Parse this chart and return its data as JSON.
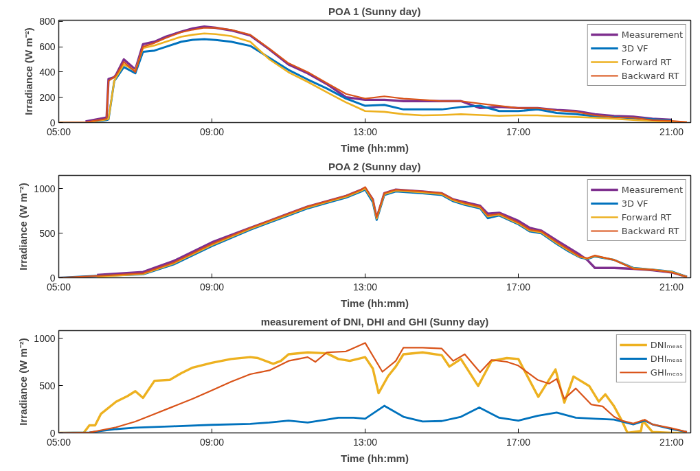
{
  "chart_data": [
    {
      "type": "line",
      "title": "POA 1 (Sunny day)",
      "xlabel": "Time (hh:mm)",
      "ylabel": "Irradiance (W m⁻²)",
      "x": [
        5,
        5.7,
        6.25,
        6.3,
        6.45,
        6.5,
        6.7,
        7.0,
        7.2,
        7.5,
        7.8,
        8.2,
        8.5,
        8.8,
        9.1,
        9.5,
        10,
        10.5,
        11,
        11.5,
        12,
        12.5,
        13,
        13.5,
        14,
        14.5,
        15,
        15.5,
        16,
        16.5,
        17,
        17.5,
        18,
        18.5,
        19,
        19.5,
        20,
        20.5,
        21,
        21.4
      ],
      "series": [
        {
          "name": "Measurement",
          "color": "#7e2f8e",
          "values": [
            null,
            8,
            40,
            345,
            360,
            380,
            500,
            420,
            620,
            640,
            680,
            720,
            745,
            760,
            750,
            730,
            690,
            580,
            460,
            390,
            305,
            200,
            180,
            180,
            170,
            170,
            170,
            170,
            115,
            125,
            115,
            115,
            100,
            92,
            66,
            52,
            46,
            30,
            22,
            null
          ]
        },
        {
          "name": "3D VF",
          "color": "#0072bd",
          "values": [
            0,
            0,
            20,
            25,
            330,
            350,
            440,
            390,
            560,
            570,
            600,
            640,
            655,
            660,
            654,
            640,
            607,
            512,
            417,
            341,
            270,
            190,
            133,
            140,
            104,
            104,
            104,
            123,
            133,
            91,
            91,
            104,
            76,
            66,
            50,
            44,
            36,
            26,
            16,
            null
          ]
        },
        {
          "name": "Forward RT",
          "color": "#edb120",
          "values": [
            0,
            0,
            25,
            30,
            330,
            360,
            460,
            410,
            590,
            610,
            640,
            680,
            695,
            705,
            700,
            685,
            640,
            500,
            398,
            322,
            240,
            160,
            91,
            85,
            66,
            57,
            60,
            66,
            60,
            53,
            57,
            57,
            49,
            44,
            38,
            30,
            20,
            12,
            6,
            2
          ]
        },
        {
          "name": "Backward RT",
          "color": "#d95319",
          "values": [
            0,
            2,
            30,
            330,
            360,
            375,
            480,
            400,
            600,
            630,
            670,
            715,
            735,
            750,
            750,
            735,
            695,
            585,
            470,
            400,
            313,
            227,
            190,
            208,
            190,
            180,
            170,
            170,
            150,
            133,
            115,
            115,
            95,
            85,
            57,
            42,
            38,
            20,
            13,
            4
          ]
        }
      ],
      "xlim": [
        5,
        21.5
      ],
      "xticks": [
        {
          "value": 5,
          "label": "05:00"
        },
        {
          "value": 9,
          "label": "09:00"
        },
        {
          "value": 13,
          "label": "13:00"
        },
        {
          "value": 17,
          "label": "17:00"
        },
        {
          "value": 21,
          "label": "21:00"
        }
      ],
      "ylim": [
        0,
        810
      ],
      "yticks": [
        0,
        200,
        400,
        600,
        800
      ],
      "legend": "top right",
      "grid": false
    },
    {
      "type": "line",
      "title": "POA 2 (Sunny day)",
      "xlabel": "Time (hh:mm)",
      "ylabel": "Irradiance (W m⁻²)",
      "x": [
        5,
        6,
        7.2,
        8,
        9,
        10,
        10.5,
        11,
        11.5,
        12,
        12.5,
        12.9,
        13,
        13.2,
        13.3,
        13.5,
        13.8,
        14.5,
        15,
        15.3,
        15.6,
        16,
        16.2,
        16.5,
        17,
        17.3,
        17.6,
        18,
        18.3,
        18.6,
        18.8,
        19,
        19.5,
        20,
        20.5,
        21,
        21.4
      ],
      "series": [
        {
          "name": "Measurement",
          "color": "#7e2f8e",
          "values": [
            null,
            32,
            64,
            188,
            398,
            560,
            640,
            720,
            800,
            860,
            920,
            990,
            1010,
            880,
            670,
            950,
            990,
            970,
            950,
            880,
            850,
            810,
            720,
            730,
            640,
            560,
            530,
            420,
            340,
            260,
            200,
            110,
            110,
            100,
            85,
            60,
            10
          ]
        },
        {
          "name": "3D VF",
          "color": "#0072bd",
          "values": [
            0,
            22,
            38,
            150,
            356,
            540,
            620,
            700,
            780,
            840,
            900,
            970,
            990,
            850,
            650,
            930,
            970,
            950,
            930,
            860,
            820,
            780,
            670,
            700,
            600,
            520,
            500,
            380,
            300,
            230,
            210,
            240,
            200,
            110,
            90,
            70,
            10
          ]
        },
        {
          "name": "Forward RT",
          "color": "#edb120",
          "values": [
            null,
            10,
            42,
            160,
            368,
            550,
            630,
            710,
            790,
            850,
            910,
            980,
            1005,
            870,
            665,
            940,
            980,
            960,
            940,
            870,
            830,
            790,
            690,
            710,
            610,
            530,
            510,
            390,
            310,
            235,
            215,
            245,
            200,
            105,
            90,
            65,
            10
          ]
        },
        {
          "name": "Backward RT",
          "color": "#d95319",
          "values": [
            0,
            20,
            50,
            170,
            380,
            560,
            640,
            720,
            800,
            860,
            920,
            990,
            1020,
            880,
            680,
            950,
            990,
            970,
            950,
            880,
            840,
            800,
            700,
            720,
            620,
            540,
            520,
            400,
            320,
            240,
            220,
            250,
            200,
            100,
            90,
            60,
            10
          ]
        }
      ],
      "xlim": [
        5,
        21.5
      ],
      "xticks": [
        {
          "value": 5,
          "label": "05:00"
        },
        {
          "value": 9,
          "label": "09:00"
        },
        {
          "value": 13,
          "label": "13:00"
        },
        {
          "value": 17,
          "label": "17:00"
        },
        {
          "value": 21,
          "label": "21:00"
        }
      ],
      "ylim": [
        0,
        1150
      ],
      "yticks": [
        0,
        500,
        1000
      ],
      "legend": "top right",
      "grid": false
    },
    {
      "type": "line",
      "title": "measurement of DNI, DHI and GHI (Sunny day)",
      "xlabel": "Time (hh:mm)",
      "ylabel": "Irradiance (W m⁻²)",
      "series": [
        {
          "name": "DNIₘₑₐₛ",
          "color": "#edb120",
          "x": [
            5,
            5.65,
            5.8,
            5.95,
            6.1,
            6.5,
            6.8,
            7.0,
            7.2,
            7.5,
            7.9,
            8.2,
            8.5,
            9,
            9.5,
            10,
            10.2,
            10.6,
            10.8,
            11,
            11.5,
            12,
            12.3,
            12.6,
            13,
            13.2,
            13.35,
            13.6,
            13.8,
            14,
            14.5,
            15,
            15.2,
            15.5,
            15.95,
            16.3,
            16.7,
            17,
            17.52,
            17.97,
            18.2,
            18.44,
            18.85,
            19.1,
            19.27,
            19.5,
            19.7,
            19.85,
            20.2,
            20.25,
            20.5,
            21,
            21.4
          ],
          "values": [
            0,
            0,
            80,
            80,
            200,
            330,
            390,
            440,
            370,
            550,
            560,
            630,
            690,
            740,
            780,
            800,
            790,
            730,
            760,
            830,
            850,
            840,
            780,
            760,
            800,
            680,
            420,
            600,
            700,
            830,
            850,
            820,
            700,
            780,
            495,
            760,
            790,
            780,
            380,
            670,
            320,
            595,
            495,
            330,
            407,
            280,
            130,
            0,
            20,
            130,
            10,
            0,
            0
          ]
        },
        {
          "name": "DHIₘₑₐₛ",
          "color": "#0072bd",
          "x": [
            5,
            5.8,
            6.5,
            7,
            8,
            9,
            10,
            10.5,
            11,
            11.5,
            12,
            12.3,
            12.7,
            13,
            13.5,
            14,
            14.5,
            15,
            15.5,
            15.98,
            16.5,
            17,
            17.5,
            18,
            18.5,
            19,
            19.5,
            20,
            20.3,
            20.5,
            21,
            21.4
          ],
          "values": [
            0,
            5,
            40,
            55,
            70,
            85,
            95,
            110,
            130,
            110,
            140,
            160,
            160,
            150,
            286,
            170,
            120,
            125,
            170,
            269,
            160,
            130,
            180,
            215,
            160,
            150,
            140,
            90,
            130,
            90,
            40,
            10
          ]
        },
        {
          "name": "GHIₘₑₐₛ",
          "color": "#d95319",
          "x": [
            5,
            5.8,
            6,
            6.5,
            7,
            7.5,
            8,
            8.5,
            9,
            9.5,
            10,
            10.5,
            10.8,
            11,
            11.5,
            11.7,
            12,
            12.5,
            13,
            13.45,
            13.8,
            14,
            14.5,
            15,
            15.3,
            15.6,
            16,
            16.3,
            16.7,
            17,
            17.5,
            17.8,
            18,
            18.2,
            18.5,
            18.9,
            19.2,
            19.5,
            19.7,
            20,
            20.3,
            20.5,
            21,
            21.4
          ],
          "values": [
            0,
            5,
            20,
            60,
            120,
            200,
            280,
            360,
            450,
            540,
            620,
            660,
            720,
            760,
            800,
            750,
            850,
            860,
            950,
            645,
            760,
            900,
            900,
            890,
            760,
            830,
            640,
            770,
            750,
            710,
            560,
            520,
            570,
            360,
            470,
            300,
            280,
            170,
            130,
            100,
            140,
            90,
            50,
            10
          ]
        }
      ],
      "xlim": [
        5,
        21.5
      ],
      "xticks": [
        {
          "value": 5,
          "label": "05:00"
        },
        {
          "value": 9,
          "label": "09:00"
        },
        {
          "value": 13,
          "label": "13:00"
        },
        {
          "value": 17,
          "label": "17:00"
        },
        {
          "value": 21,
          "label": "21:00"
        }
      ],
      "ylim": [
        0,
        1080
      ],
      "yticks": [
        0,
        500,
        1000
      ],
      "legend": "top right",
      "grid": false
    }
  ]
}
